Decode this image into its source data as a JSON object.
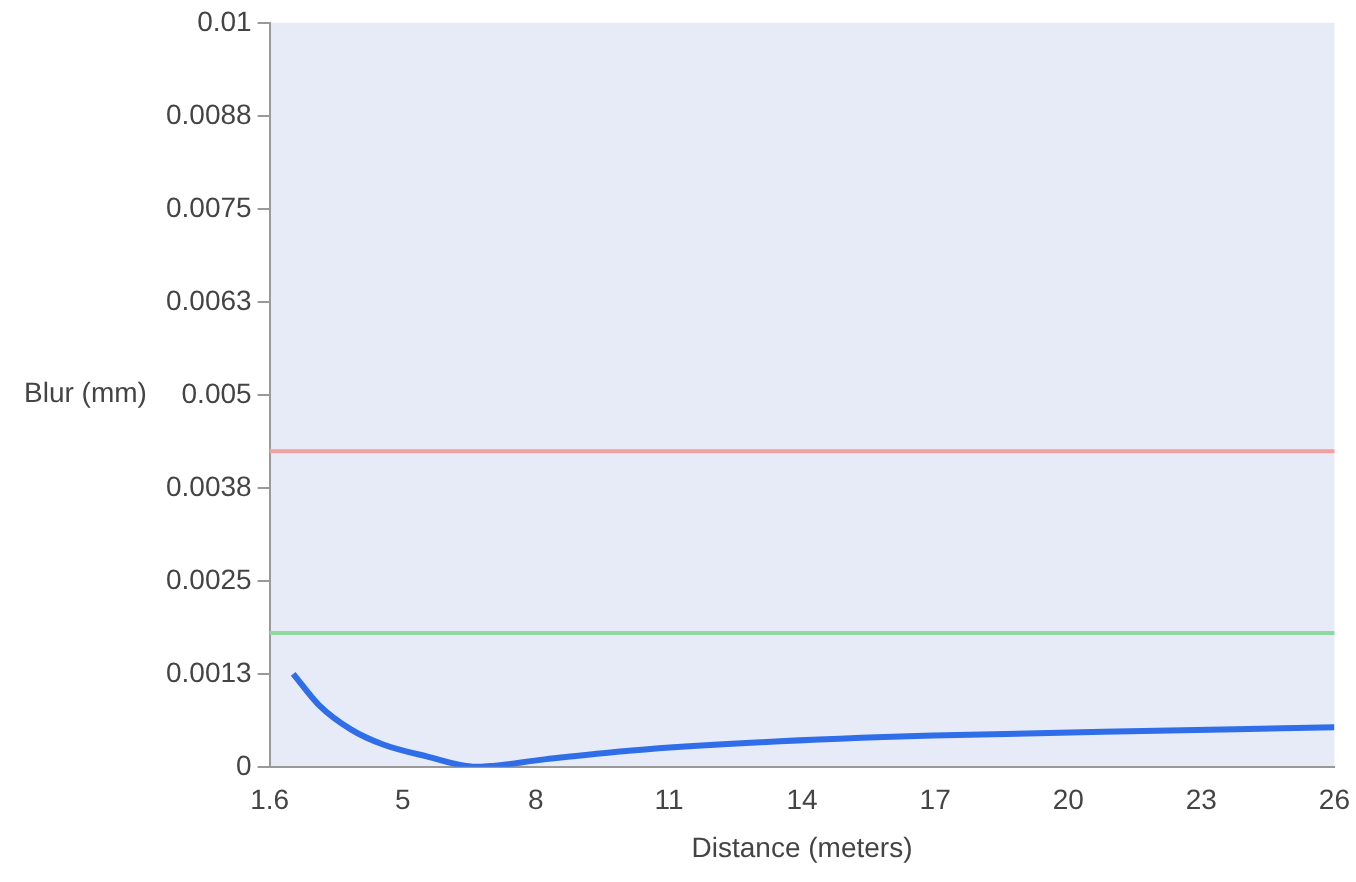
{
  "chart_data": {
    "type": "line",
    "xlabel": "Distance (meters)",
    "ylabel": "Blur (mm)",
    "xlim": [
      1.6,
      26
    ],
    "ylim": [
      0,
      0.01
    ],
    "xticks": [
      1.6,
      {
        "value": 4.65,
        "label": "5"
      },
      {
        "value": 7.7,
        "label": "8"
      },
      {
        "value": 10.75,
        "label": "11"
      },
      {
        "value": 13.8,
        "label": "14"
      },
      {
        "value": 16.85,
        "label": "17"
      },
      {
        "value": 19.9,
        "label": "20"
      },
      {
        "value": 22.95,
        "label": "23"
      },
      26
    ],
    "yticks": [
      0,
      {
        "value": 0.00125,
        "label": "0.0013"
      },
      {
        "value": 0.0025,
        "label": "0.0025"
      },
      {
        "value": 0.00375,
        "label": "0.0038"
      },
      {
        "value": 0.005,
        "label": "0.005"
      },
      {
        "value": 0.00625,
        "label": "0.0063"
      },
      {
        "value": 0.0075,
        "label": "0.0075"
      },
      {
        "value": 0.00875,
        "label": "0.0088"
      },
      0.01
    ],
    "series": [
      {
        "color": "#2f6ee8",
        "x": [
          2.14,
          2.73,
          3.47,
          4.2,
          5.2,
          6.33,
          7.9,
          9.9,
          12.85,
          16.8,
          20.7,
          26
        ],
        "values": [
          0.00125,
          0.00083,
          0.0005,
          0.0003,
          0.00014,
          0,
          0.0001,
          0.00022,
          0.00033,
          0.00042,
          0.00047,
          0.00053
        ]
      }
    ],
    "ref_lines": [
      {
        "axis": "y",
        "value": 0.00424,
        "color": "#f0a0a0"
      },
      {
        "axis": "y",
        "value": 0.0018,
        "color": "#8fd8a0"
      }
    ],
    "grid": false,
    "legend": false,
    "marker": "none",
    "line_style": "solid"
  }
}
